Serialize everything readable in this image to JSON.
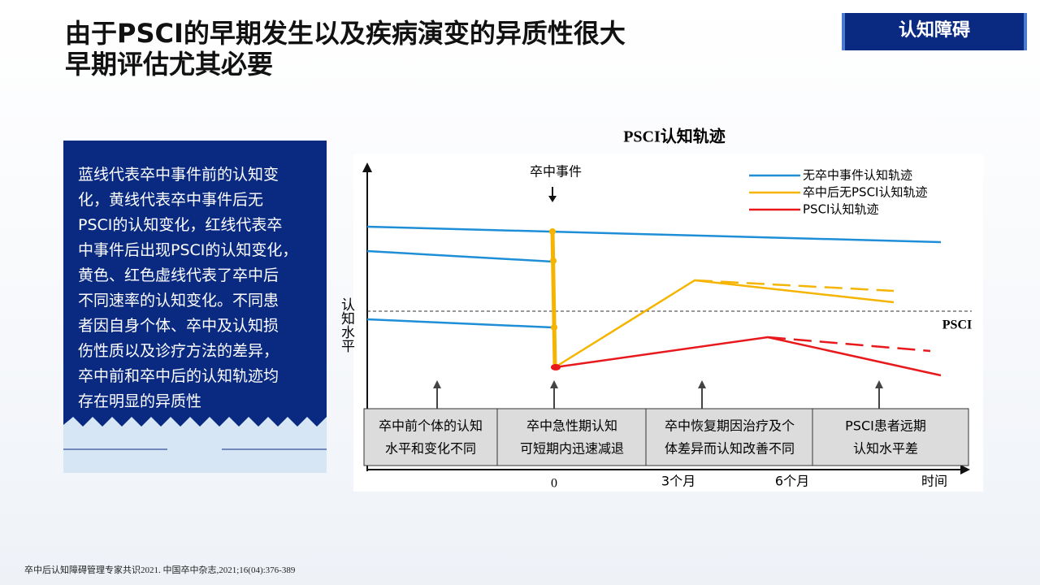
{
  "header": {
    "title_lines": [
      "由于PSCI的早期发生以及疾病演变的异质性很大",
      "早期评估尤其必要"
    ],
    "tag": "认知障碍"
  },
  "description_lines": [
    "蓝线代表卒中事件前的认知变",
    "化，黄线代表卒中事件后无",
    "PSCI的认知变化，红线代表卒",
    "中事件后出现PSCI的认知变化，",
    "黄色、红色虚线代表了卒中后",
    "不同速率的认知变化。不同患",
    "者因自身个体、卒中及认知损",
    "伤性质以及诊疗方法的差异，",
    "卒中前和卒中后的认知轨迹均",
    "存在明显的异质性"
  ],
  "chart": {
    "title": "PSCI认知轨迹",
    "event_label": "卒中事件",
    "y_axis_label": "认知水平",
    "threshold_label": "PSCI",
    "legend": [
      "无卒中事件认知轨迹",
      "卒中后无PSCI认知轨迹",
      "PSCI认知轨迹"
    ],
    "phases": [
      [
        "卒中前个体的认知",
        "水平和变化不同"
      ],
      [
        "卒中急性期认知",
        "可短期内迅速减退"
      ],
      [
        "卒中恢复期因治疗及个",
        "体差异而认知改善不同"
      ],
      [
        "PSCI患者远期",
        "认知水平差"
      ]
    ],
    "x_labels": [
      "0",
      "3个月",
      "6个月",
      "时间"
    ]
  },
  "footnote": "卒中后认知障碍管理专家共识2021. 中国卒中杂志,2021;16(04):376-389"
}
